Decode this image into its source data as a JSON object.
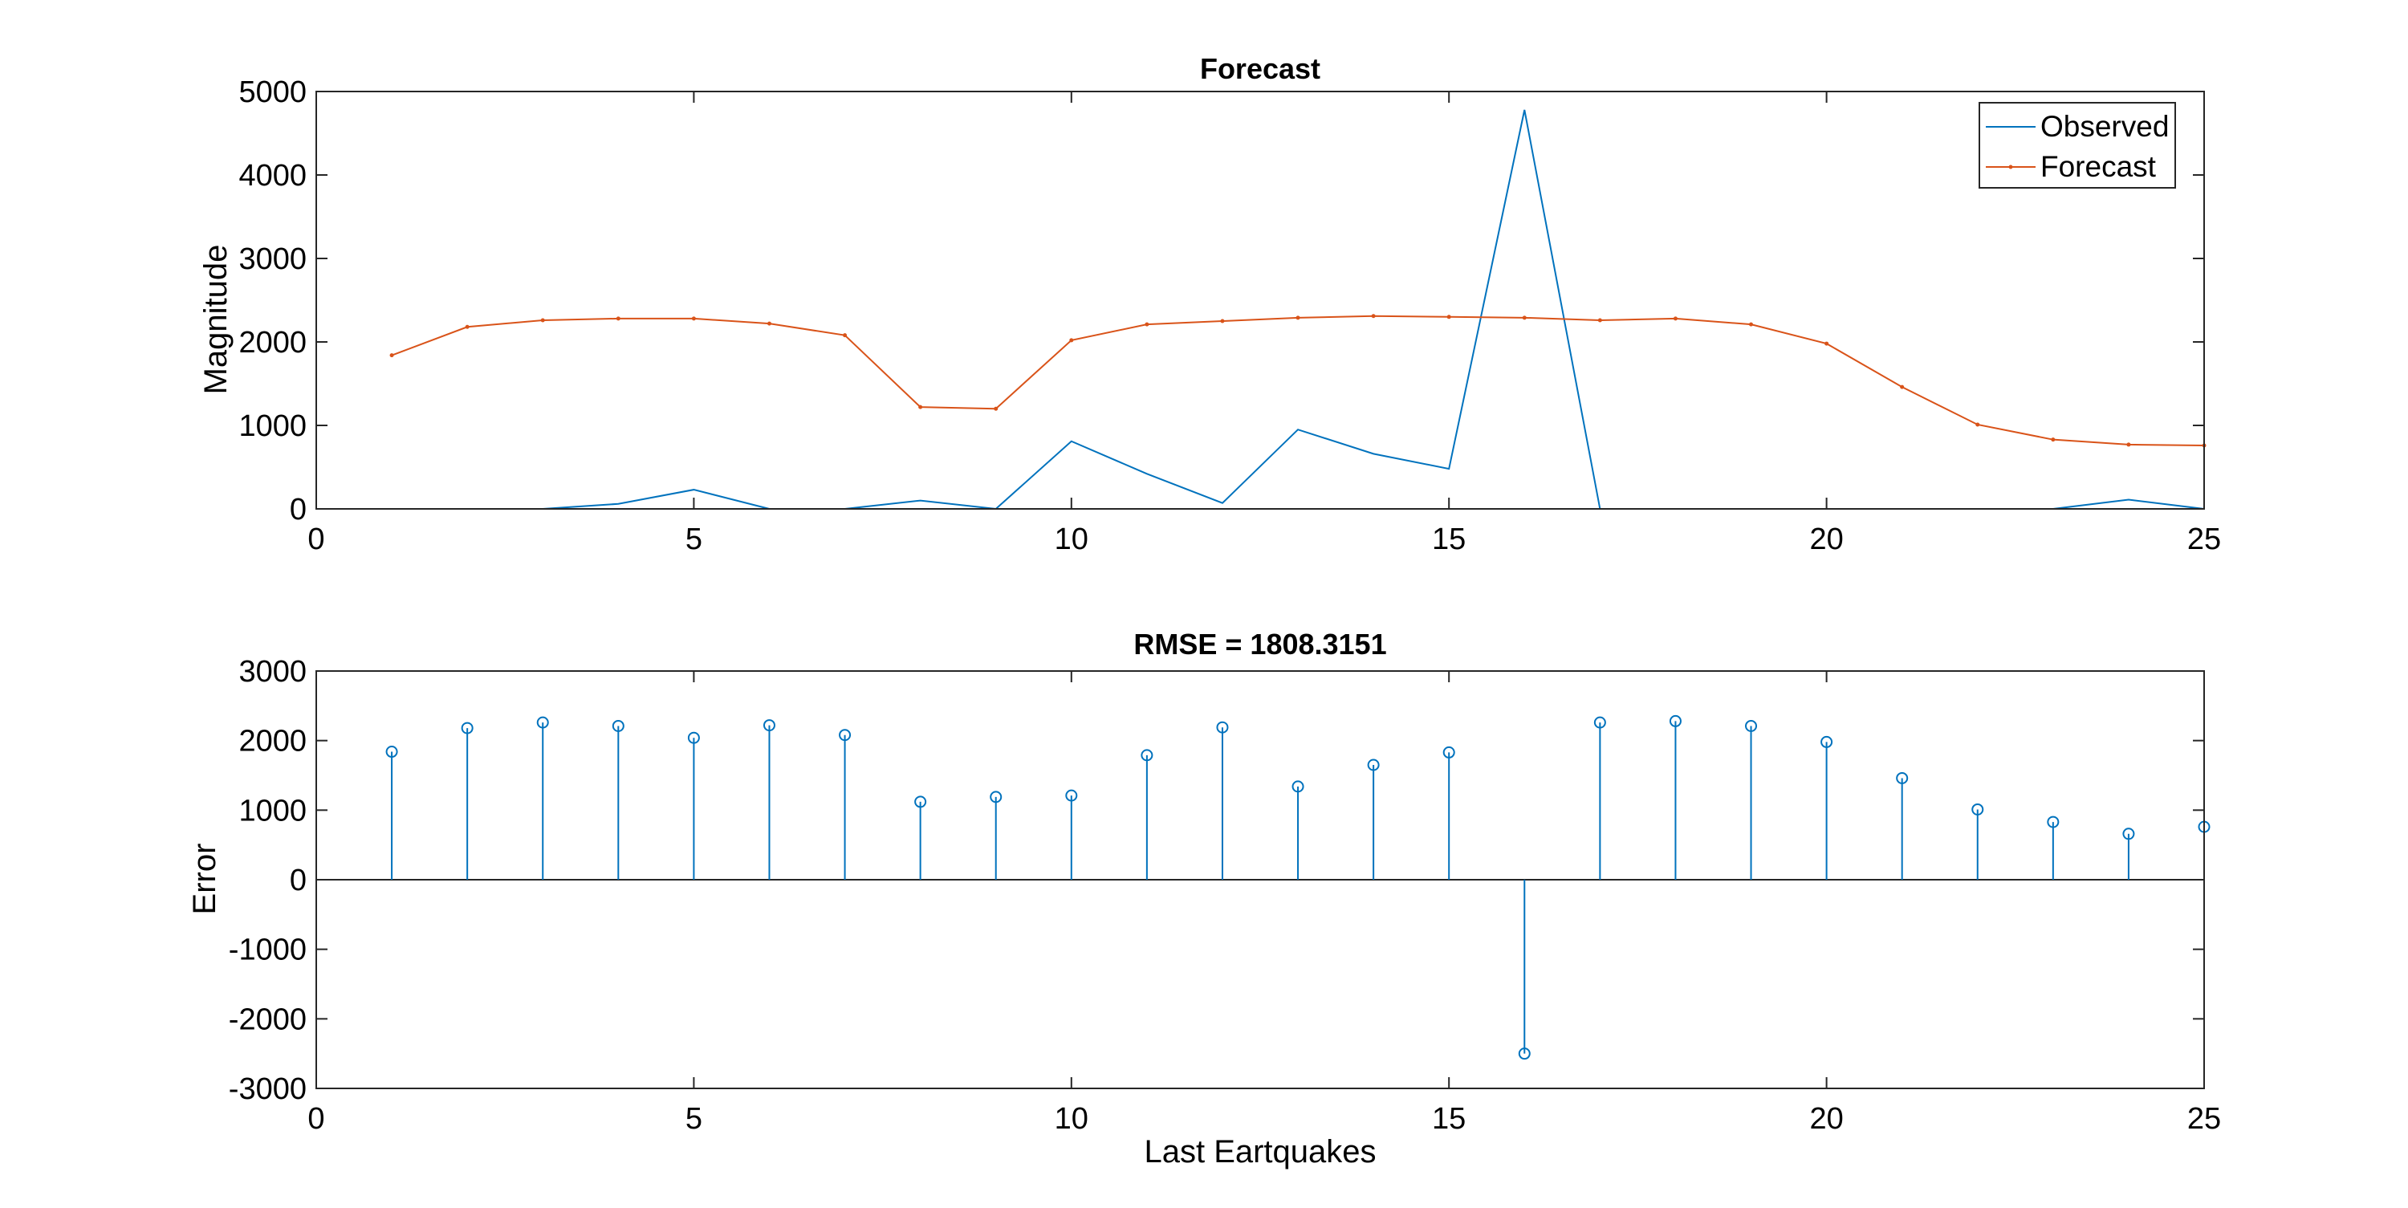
{
  "colors": {
    "observed": "#0072BD",
    "forecast": "#D95319",
    "stem": "#0072BD",
    "axis": "#262626",
    "background": "#ffffff"
  },
  "chart_data": [
    {
      "type": "line",
      "title": "Forecast",
      "xlabel": "",
      "ylabel": "Magnitude",
      "xlim": [
        0,
        25
      ],
      "ylim": [
        0,
        5000
      ],
      "xticks": [
        0,
        5,
        10,
        15,
        20,
        25
      ],
      "yticks": [
        0,
        1000,
        2000,
        3000,
        4000,
        5000
      ],
      "grid": false,
      "legend_position": "top-right",
      "x": [
        1,
        2,
        3,
        4,
        5,
        6,
        7,
        8,
        9,
        10,
        11,
        12,
        13,
        14,
        15,
        16,
        17,
        18,
        19,
        20,
        21,
        22,
        23,
        24,
        25
      ],
      "series": [
        {
          "name": "Observed",
          "marker": "none",
          "values": [
            0,
            0,
            0,
            60,
            230,
            0,
            0,
            100,
            0,
            810,
            420,
            70,
            950,
            660,
            480,
            4780,
            0,
            0,
            0,
            0,
            0,
            0,
            0,
            110,
            0
          ]
        },
        {
          "name": "Forecast",
          "marker": "dot",
          "values": [
            1840,
            2180,
            2260,
            2280,
            2280,
            2220,
            2080,
            1220,
            1200,
            2020,
            2210,
            2250,
            2290,
            2310,
            2300,
            2290,
            2260,
            2280,
            2210,
            1980,
            1460,
            1010,
            830,
            770,
            760
          ]
        }
      ]
    },
    {
      "type": "stem",
      "title": "RMSE = 1808.3151",
      "xlabel": "Last Eartquakes",
      "ylabel": "Error",
      "xlim": [
        0,
        25
      ],
      "ylim": [
        -3000,
        3000
      ],
      "xticks": [
        0,
        5,
        10,
        15,
        20,
        25
      ],
      "yticks": [
        -3000,
        -2000,
        -1000,
        0,
        1000,
        2000,
        3000
      ],
      "grid": false,
      "x": [
        1,
        2,
        3,
        4,
        5,
        6,
        7,
        8,
        9,
        10,
        11,
        12,
        13,
        14,
        15,
        16,
        17,
        18,
        19,
        20,
        21,
        22,
        23,
        24,
        25
      ],
      "values": [
        1840,
        2180,
        2260,
        2210,
        2040,
        2220,
        2080,
        1120,
        1190,
        1210,
        1790,
        2190,
        1340,
        1650,
        1830,
        -2500,
        2260,
        2280,
        2210,
        1980,
        1460,
        1010,
        830,
        660,
        760
      ]
    }
  ]
}
